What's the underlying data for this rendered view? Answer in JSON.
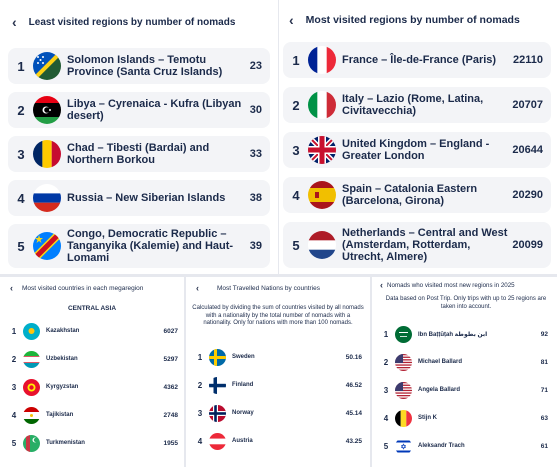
{
  "least_visited": {
    "title": "Least visited regions by number of nomads",
    "rows": [
      {
        "rank": "1",
        "name": "Solomon Islands – Temotu Province (Santa Cruz Islands)",
        "value": "23",
        "flag_icon": "solomon-islands-flag-icon"
      },
      {
        "rank": "2",
        "name": "Libya – Cyrenaica - Kufra (Libyan desert)",
        "value": "30",
        "flag_icon": "libya-flag-icon"
      },
      {
        "rank": "3",
        "name": "Chad – Tibesti (Bardai) and Northern Borkou",
        "value": "33",
        "flag_icon": "chad-flag-icon"
      },
      {
        "rank": "4",
        "name": "Russia – New Siberian Islands",
        "value": "38",
        "flag_icon": "russia-flag-icon"
      },
      {
        "rank": "5",
        "name": "Congo, Democratic Republic – Tanganyika (Kalemie) and Haut-Lomami",
        "value": "39",
        "flag_icon": "dr-congo-flag-icon"
      }
    ]
  },
  "most_visited": {
    "title": "Most visited regions by number of nomads",
    "rows": [
      {
        "rank": "1",
        "name": "France – Île-de-France (Paris)",
        "value": "22110",
        "flag_icon": "france-flag-icon"
      },
      {
        "rank": "2",
        "name": "Italy – Lazio (Rome, Latina, Civitavecchia)",
        "value": "20707",
        "flag_icon": "italy-flag-icon"
      },
      {
        "rank": "3",
        "name": "United Kingdom – England - Greater London",
        "value": "20644",
        "flag_icon": "uk-flag-icon"
      },
      {
        "rank": "4",
        "name": "Spain – Catalonia Eastern (Barcelona, Girona)",
        "value": "20290",
        "flag_icon": "spain-flag-icon"
      },
      {
        "rank": "5",
        "name": "Netherlands – Central and West (Amsterdam, Rotterdam, Utrecht, Almere)",
        "value": "20099",
        "flag_icon": "netherlands-flag-icon"
      }
    ]
  },
  "megaregion": {
    "title": "Most visited countries in each megaregion",
    "subtitle": "CENTRAL ASIA",
    "rows": [
      {
        "rank": "1",
        "name": "Kazakhstan",
        "value": "6027",
        "flag_icon": "kazakhstan-flag-icon"
      },
      {
        "rank": "2",
        "name": "Uzbekistan",
        "value": "5297",
        "flag_icon": "uzbekistan-flag-icon"
      },
      {
        "rank": "3",
        "name": "Kyrgyzstan",
        "value": "4362",
        "flag_icon": "kyrgyzstan-flag-icon"
      },
      {
        "rank": "4",
        "name": "Tajikistan",
        "value": "2748",
        "flag_icon": "tajikistan-flag-icon"
      },
      {
        "rank": "5",
        "name": "Turkmenistan",
        "value": "1955",
        "flag_icon": "turkmenistan-flag-icon"
      }
    ]
  },
  "travelled": {
    "title": "Most Travelled Nations by countries",
    "note": "Calculated by dividing the sum of countries visited by all nomads with a nationality by the total number of nomads with a nationality. Only for nations with more than 100 nomads.",
    "rows": [
      {
        "rank": "1",
        "name": "Sweden",
        "value": "50.16",
        "flag_icon": "sweden-flag-icon"
      },
      {
        "rank": "2",
        "name": "Finland",
        "value": "46.52",
        "flag_icon": "finland-flag-icon"
      },
      {
        "rank": "3",
        "name": "Norway",
        "value": "45.14",
        "flag_icon": "norway-flag-icon"
      },
      {
        "rank": "4",
        "name": "Austria",
        "value": "43.25",
        "flag_icon": "austria-flag-icon"
      }
    ]
  },
  "new_regions": {
    "title": "Nomads who visited most new regions in 2025",
    "note": "Data based on Post Trip. Only trips with up to 25 regions are taken into account.",
    "rows": [
      {
        "rank": "1",
        "name": "Ibn Baṭṭūṭah ابن بطوطة",
        "value": "92",
        "flag_icon": "saudi-arabia-flag-icon"
      },
      {
        "rank": "2",
        "name": "Michael Ballard",
        "value": "81",
        "flag_icon": "usa-flag-icon"
      },
      {
        "rank": "3",
        "name": "Angela Ballard",
        "value": "71",
        "flag_icon": "usa-flag-icon"
      },
      {
        "rank": "4",
        "name": "Stijn K",
        "value": "63",
        "flag_icon": "belgium-flag-icon"
      },
      {
        "rank": "5",
        "name": "Aleksandr Trach",
        "value": "61",
        "flag_icon": "israel-flag-icon"
      }
    ]
  },
  "back_icon": "chevron-left-icon"
}
